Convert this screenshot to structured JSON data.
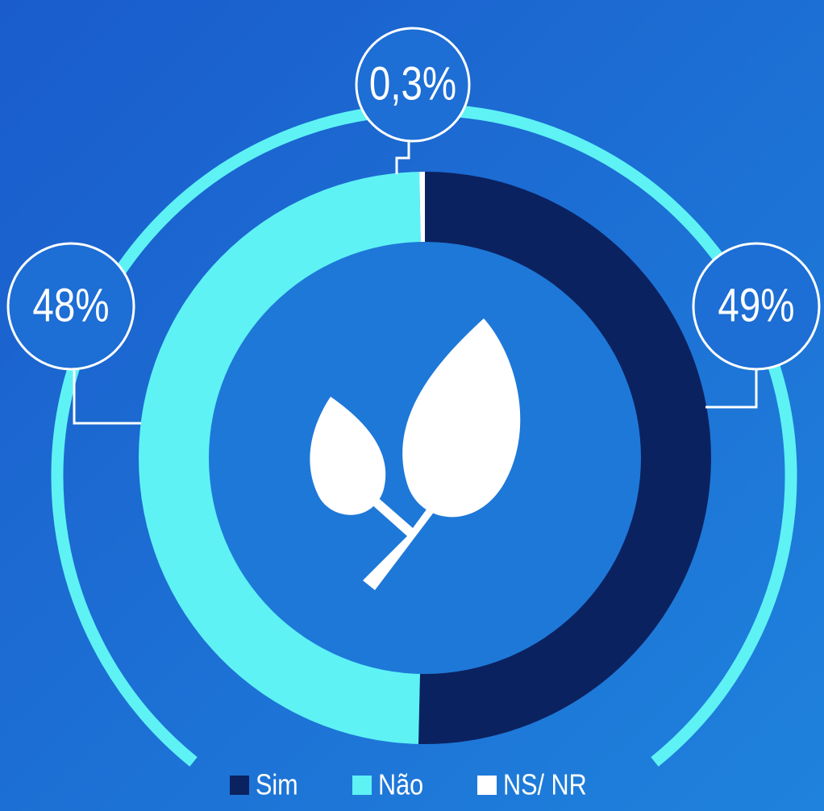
{
  "chart_data": {
    "type": "pie",
    "donut": true,
    "categories": [
      "Sim",
      "Não",
      "NS/ NR"
    ],
    "values": [
      49,
      48,
      0.3
    ],
    "value_labels": [
      "49%",
      "48%",
      "0,3%"
    ],
    "colors": [
      "#0b2260",
      "#5ef2f5",
      "#ffffff"
    ],
    "legend": "bottom"
  }
}
